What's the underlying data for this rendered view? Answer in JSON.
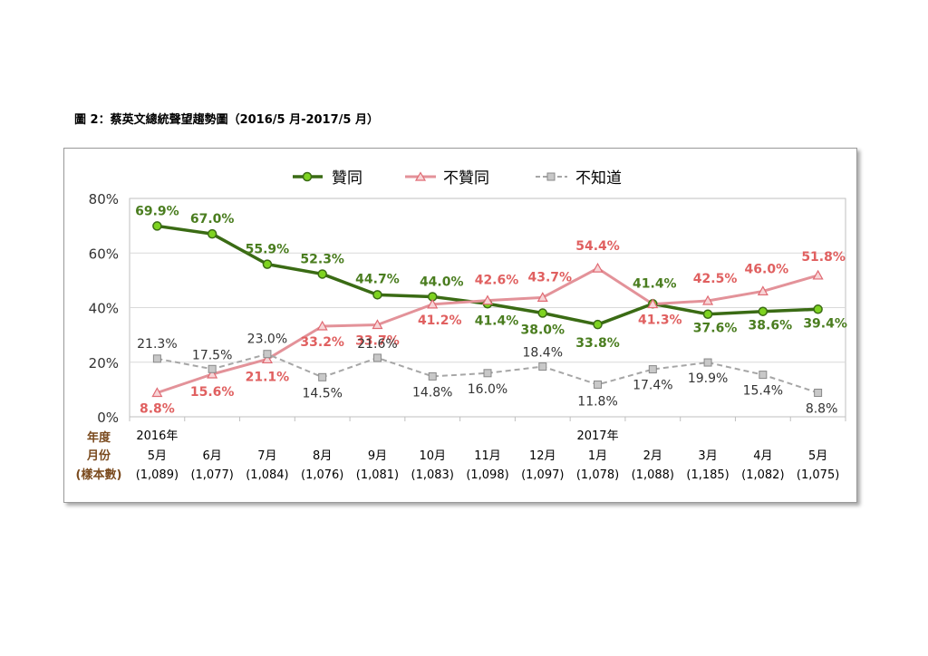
{
  "title": "圖 2：蔡英文總統聲望趨勢圖（2016/5 月-2017/5 月）",
  "axis_header": {
    "year": "年度",
    "month": "月份",
    "sample": "(樣本數)"
  },
  "legend": [
    "贊同",
    "不贊同",
    "不知道"
  ],
  "colors": {
    "approve": "#3a6b14",
    "approve_label": "#4a7d1f",
    "disapprove": "#e39299",
    "disapprove_label": "#e06060",
    "unknown": "#a6a6a6",
    "unknown_label": "#333333"
  },
  "chart_data": {
    "type": "line",
    "ylim": [
      0,
      80
    ],
    "yticks": [
      "0%",
      "20%",
      "40%",
      "60%",
      "80%"
    ],
    "categories": [
      {
        "year": "2016年",
        "month": "5月",
        "n": "(1,089)"
      },
      {
        "year": "",
        "month": "6月",
        "n": "(1,077)"
      },
      {
        "year": "",
        "month": "7月",
        "n": "(1,084)"
      },
      {
        "year": "",
        "month": "8月",
        "n": "(1,076)"
      },
      {
        "year": "",
        "month": "9月",
        "n": "(1,081)"
      },
      {
        "year": "",
        "month": "10月",
        "n": "(1,083)"
      },
      {
        "year": "",
        "month": "11月",
        "n": "(1,098)"
      },
      {
        "year": "",
        "month": "12月",
        "n": "(1,097)"
      },
      {
        "year": "2017年",
        "month": "1月",
        "n": "(1,078)"
      },
      {
        "year": "",
        "month": "2月",
        "n": "(1,088)"
      },
      {
        "year": "",
        "month": "3月",
        "n": "(1,185)"
      },
      {
        "year": "",
        "month": "4月",
        "n": "(1,082)"
      },
      {
        "year": "",
        "month": "5月",
        "n": "(1,075)"
      }
    ],
    "series": [
      {
        "name": "贊同",
        "values": [
          69.9,
          67.0,
          55.9,
          52.3,
          44.7,
          44.0,
          41.4,
          38.0,
          33.8,
          41.4,
          37.6,
          38.6,
          39.4
        ],
        "labels": [
          "69.9%",
          "67.0%",
          "55.9%",
          "52.3%",
          "44.7%",
          "44.0%",
          "41.4%",
          "38.0%",
          "33.8%",
          "41.4%",
          "37.6%",
          "38.6%",
          "39.4%"
        ]
      },
      {
        "name": "不贊同",
        "values": [
          8.8,
          15.6,
          21.1,
          33.2,
          33.7,
          41.2,
          42.6,
          43.7,
          54.4,
          41.3,
          42.5,
          46.0,
          51.8
        ],
        "labels": [
          "8.8%",
          "15.6%",
          "21.1%",
          "33.2%",
          "33.7%",
          "41.2%",
          "42.6%",
          "43.7%",
          "54.4%",
          "41.3%",
          "42.5%",
          "46.0%",
          "51.8%"
        ]
      },
      {
        "name": "不知道",
        "values": [
          21.3,
          17.5,
          23.0,
          14.5,
          21.6,
          14.8,
          16.0,
          18.4,
          11.8,
          17.4,
          19.9,
          15.4,
          8.8
        ],
        "labels": [
          "21.3%",
          "17.5%",
          "23.0%",
          "14.5%",
          "21.6%",
          "14.8%",
          "16.0%",
          "18.4%",
          "11.8%",
          "17.4%",
          "19.9%",
          "15.4%",
          "8.8%"
        ]
      }
    ]
  }
}
